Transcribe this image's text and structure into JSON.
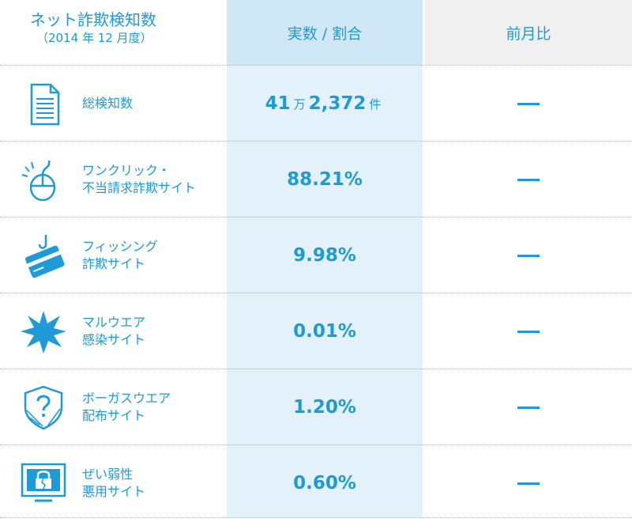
{
  "header": {
    "title_line1": "ネット詐欺検知数",
    "title_line2": "（2014 年 12 月度）",
    "col_value": "実数 / 割合",
    "col_prev": "前月比"
  },
  "rows": [
    {
      "label1": "総検知数",
      "label2": "",
      "value_main_a": "41",
      "value_unit_a": "万",
      "value_main_b": "2,372",
      "value_unit_b": "件",
      "prev": "—",
      "icon": "document-icon"
    },
    {
      "label1": "ワンクリック・",
      "label2": "不当請求詐欺サイト",
      "value": "88.21%",
      "prev": "—",
      "icon": "mouse-icon"
    },
    {
      "label1": "フィッシング",
      "label2": "詐欺サイト",
      "value": "9.98%",
      "prev": "—",
      "icon": "credit-card-hook-icon"
    },
    {
      "label1": "マルウエア",
      "label2": "感染サイト",
      "value": "0.01%",
      "prev": "—",
      "icon": "burst-icon"
    },
    {
      "label1": "ボーガスウエア",
      "label2": "配布サイト",
      "value": "1.20%",
      "prev": "—",
      "icon": "shield-question-icon"
    },
    {
      "label1": "ぜい弱性",
      "label2": "悪用サイト",
      "value": "0.60%",
      "prev": "—",
      "icon": "broken-lock-monitor-icon"
    }
  ],
  "colors": {
    "accent": "#1e9ad8",
    "value_column_bg": "#e3f1fa",
    "value_header_bg": "#d0e8f6",
    "prev_header_bg": "#f0f0f0"
  },
  "chart_data": {
    "type": "table",
    "title": "ネット詐欺検知数（2014 年 12 月度）",
    "columns": [
      "実数 / 割合",
      "前月比"
    ],
    "rows": [
      {
        "category": "総検知数",
        "value": "41 万 2,372 件",
        "prev": "—"
      },
      {
        "category": "ワンクリック・不当請求詐欺サイト",
        "value": "88.21%",
        "prev": "—"
      },
      {
        "category": "フィッシング詐欺サイト",
        "value": "9.98%",
        "prev": "—"
      },
      {
        "category": "マルウエア感染サイト",
        "value": "0.01%",
        "prev": "—"
      },
      {
        "category": "ボーガスウエア配布サイト",
        "value": "1.20%",
        "prev": "—"
      },
      {
        "category": "ぜい弱性悪用サイト",
        "value": "0.60%",
        "prev": "—"
      }
    ]
  }
}
